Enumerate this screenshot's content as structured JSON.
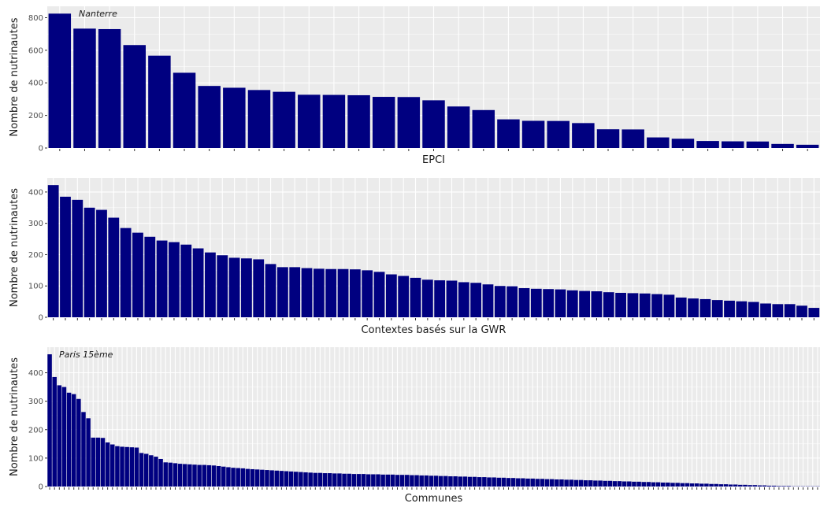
{
  "colors": {
    "bar": "#000080",
    "panel_bg": "#ebebeb",
    "grid": "#ffffff",
    "tick": "#333333"
  },
  "chart_data": [
    {
      "type": "bar",
      "xlabel": "EPCI",
      "ylabel": "Nombre de nutrinautes",
      "ylim": [
        0,
        870
      ],
      "y_ticks": [
        0,
        200,
        400,
        600,
        800
      ],
      "annotation": {
        "text": "Nanterre",
        "bar_index": 0
      },
      "grid": true,
      "values": [
        825,
        733,
        730,
        632,
        567,
        462,
        381,
        370,
        356,
        345,
        327,
        326,
        324,
        314,
        313,
        293,
        255,
        233,
        176,
        167,
        166,
        153,
        115,
        114,
        65,
        57,
        43,
        41,
        40,
        25,
        20
      ]
    },
    {
      "type": "bar",
      "xlabel": "Contextes basés sur la GWR",
      "ylabel": "Nombre de nutrinautes",
      "ylim": [
        0,
        445
      ],
      "y_ticks": [
        0,
        100,
        200,
        300,
        400
      ],
      "grid": true,
      "values": [
        422,
        385,
        375,
        350,
        343,
        318,
        285,
        270,
        257,
        245,
        240,
        232,
        220,
        207,
        198,
        190,
        188,
        185,
        170,
        160,
        160,
        157,
        155,
        154,
        154,
        153,
        150,
        145,
        137,
        132,
        126,
        120,
        118,
        117,
        112,
        110,
        105,
        100,
        99,
        93,
        91,
        90,
        89,
        86,
        84,
        83,
        80,
        78,
        77,
        76,
        74,
        72,
        63,
        60,
        58,
        55,
        53,
        51,
        49,
        44,
        42,
        42,
        37,
        30
      ]
    },
    {
      "type": "bar",
      "xlabel": "Communes",
      "ylabel": "Nombre de nutrinautes",
      "ylim": [
        0,
        490
      ],
      "y_ticks": [
        0,
        100,
        200,
        300,
        400
      ],
      "annotation": {
        "text": "Paris 15ème",
        "bar_index": 0
      },
      "grid": true,
      "values": [
        465,
        385,
        356,
        350,
        330,
        325,
        308,
        262,
        240,
        172,
        172,
        171,
        155,
        148,
        142,
        140,
        139,
        138,
        137,
        118,
        115,
        110,
        105,
        97,
        85,
        84,
        82,
        80,
        79,
        78,
        77,
        76,
        76,
        75,
        74,
        72,
        70,
        68,
        66,
        65,
        64,
        62,
        61,
        60,
        59,
        58,
        57,
        56,
        55,
        54,
        53,
        52,
        51,
        50,
        49,
        48,
        48,
        47,
        47,
        46,
        46,
        45,
        45,
        44,
        44,
        44,
        43,
        43,
        43,
        42,
        42,
        42,
        41,
        41,
        41,
        40,
        40,
        39,
        39,
        38,
        38,
        37,
        37,
        36,
        36,
        35,
        35,
        34,
        34,
        33,
        33,
        32,
        32,
        31,
        31,
        30,
        30,
        29,
        29,
        28,
        28,
        27,
        27,
        26,
        26,
        25,
        25,
        24,
        24,
        23,
        23,
        22,
        22,
        21,
        21,
        20,
        20,
        19,
        19,
        18,
        18,
        17,
        17,
        16,
        16,
        15,
        15,
        14,
        14,
        13,
        13,
        12,
        12,
        11,
        11,
        10,
        10,
        9,
        9,
        8,
        8,
        7,
        7,
        6,
        6,
        5,
        5,
        4,
        4,
        3,
        3,
        2,
        2,
        2,
        1,
        1,
        1,
        1,
        1,
        1
      ]
    }
  ]
}
